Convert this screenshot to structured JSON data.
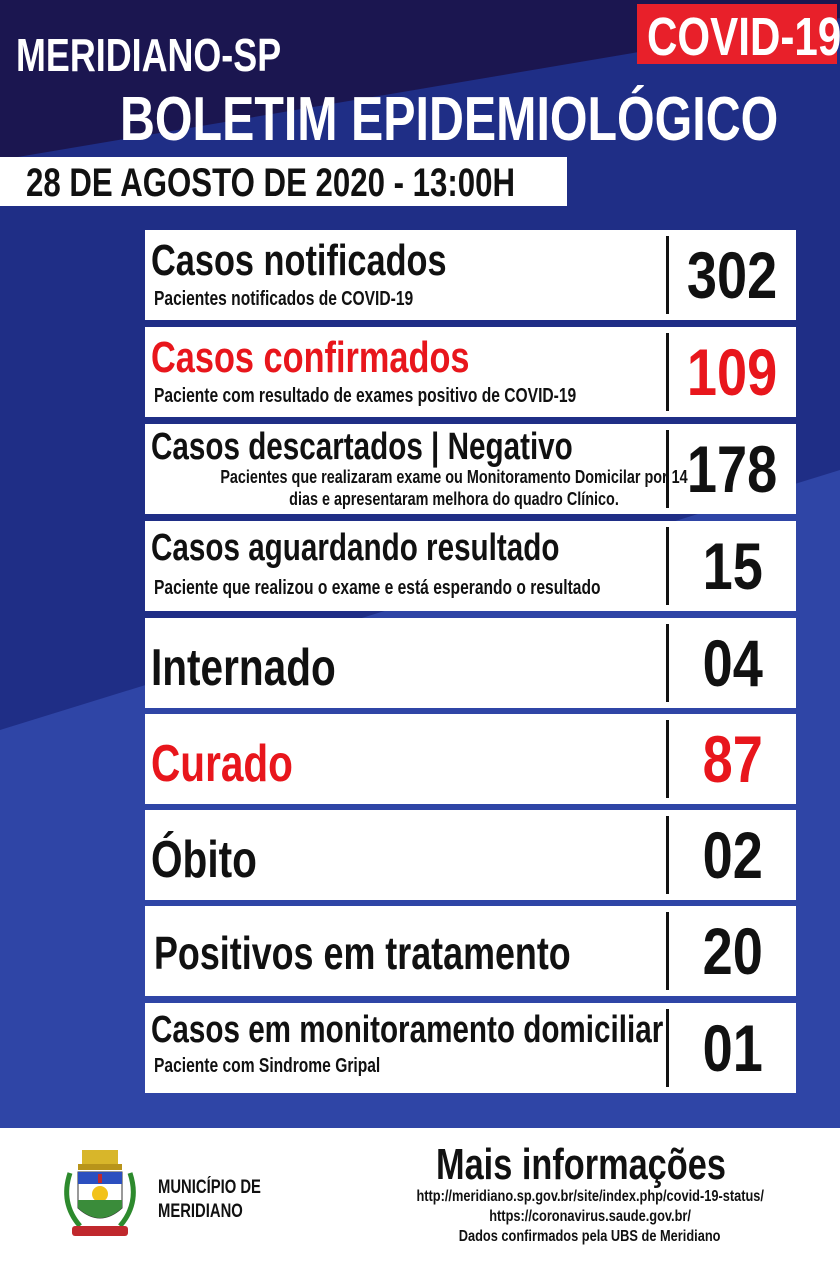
{
  "header": {
    "city": "MERIDIANO-SP",
    "badge": "COVID-19",
    "title": "BOLETIM EPIDEMIOLÓGICO",
    "date": "28 DE AGOSTO DE 2020 - 13:00H"
  },
  "colors": {
    "navy": "#1b1650",
    "blue": "#1f2e86",
    "light_blue": "#2f45a6",
    "red": "#e8161c"
  },
  "rows": [
    {
      "label": "Casos notificados",
      "sub": "Pacientes notificados de COVID-19",
      "value": "302",
      "highlight": false
    },
    {
      "label": "Casos confirmados",
      "sub": "Paciente com resultado de exames positivo de COVID-19",
      "value": "109",
      "highlight": true
    },
    {
      "label": "Casos descartados | Negativo",
      "sub_line1": "Pacientes que realizaram exame ou Monitoramento Domicilar por 14",
      "sub_line2": "dias e apresentaram melhora do quadro Clínico.",
      "value": "178",
      "highlight": false
    },
    {
      "label": "Casos aguardando resultado",
      "sub": "Paciente que realizou o exame e está esperando o resultado",
      "value": "15",
      "highlight": false
    },
    {
      "label": "Internado",
      "value": "04",
      "highlight": false
    },
    {
      "label": "Curado",
      "value": "87",
      "highlight": true
    },
    {
      "label": "Óbito",
      "value": "02",
      "highlight": false
    },
    {
      "label": "Positivos em tratamento",
      "value": "20",
      "highlight": false
    },
    {
      "label": "Casos em monitoramento domiciliar",
      "sub": "Paciente com Sindrome Gripal",
      "value": "01",
      "highlight": false
    }
  ],
  "footer": {
    "municipality_line1": "MUNICÍPIO DE",
    "municipality_line2": "MERIDIANO",
    "logo_text": "MERIDIANO",
    "more_info": "Mais informações",
    "link1": "http://meridiano.sp.gov.br/site/index.php/covid-19-status/",
    "link2": "https://coronavirus.saude.gov.br/",
    "note": "Dados confirmados pela UBS de Meridiano"
  }
}
